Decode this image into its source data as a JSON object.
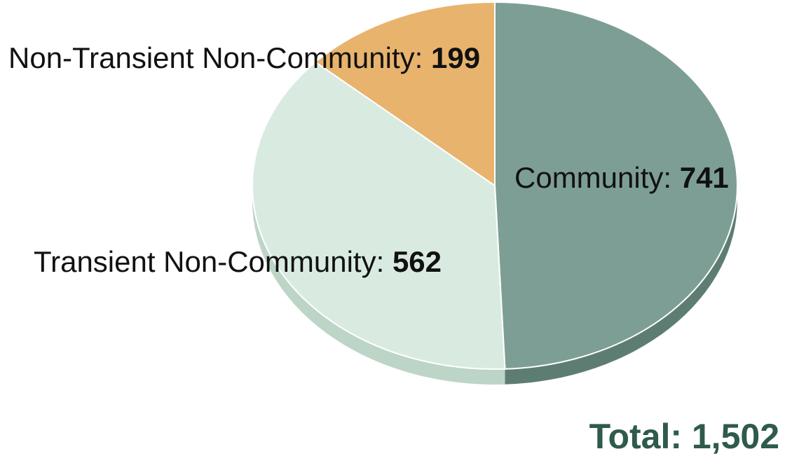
{
  "chart_data": {
    "type": "pie",
    "categories": [
      "Community",
      "Transient Non-Community",
      "Non-Transient Non-Community"
    ],
    "values": [
      741,
      562,
      199
    ],
    "separator": ": ",
    "value_labels": [
      "741",
      "562",
      "199"
    ],
    "total_text": "Total: 1,502",
    "colors": {
      "Community": "#7d9e94",
      "Transient Non-Community": "#d9ebe0",
      "Non-Transient Non-Community": "#e8b36d",
      "Community_side": "#5d7d73",
      "Transient Non-Community_side": "#bdd5c6",
      "total_text": "#2f5a4d"
    },
    "style": "3d"
  }
}
